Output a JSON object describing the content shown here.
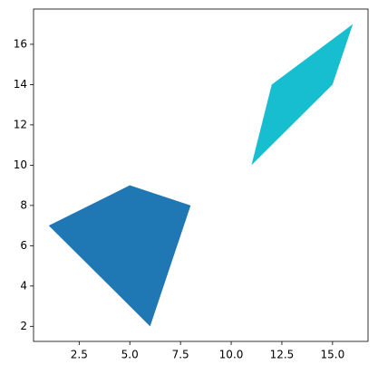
{
  "chart_data": {
    "type": "polygon",
    "series": [
      {
        "color": "#1f77b4",
        "x": [
          1,
          5,
          8,
          6
        ],
        "y": [
          7,
          9,
          8,
          2
        ]
      },
      {
        "color": "#17becf",
        "x": [
          11,
          12,
          16,
          15
        ],
        "y": [
          10,
          14,
          17,
          14
        ]
      }
    ],
    "xlim": [
      0.25,
      16.75
    ],
    "ylim": [
      1.25,
      17.75
    ],
    "xticks": [
      2.5,
      {
        "value": 5,
        "label": "5.0"
      },
      7.5,
      {
        "value": 10,
        "label": "10.0"
      },
      12.5,
      {
        "value": 15,
        "label": "15.0"
      }
    ],
    "yticks": [
      2,
      4,
      6,
      8,
      10,
      12,
      14,
      16
    ]
  }
}
